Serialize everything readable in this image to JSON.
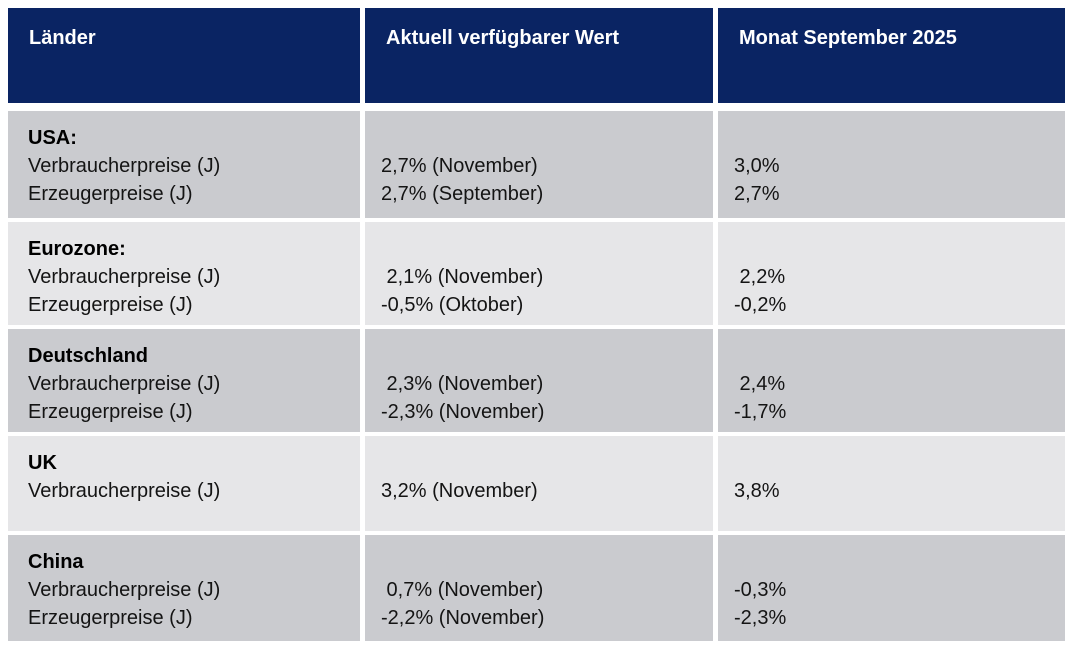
{
  "colors": {
    "header_bg": "#0a2463",
    "header_text": "#ffffff",
    "row_dark": "#cacbcf",
    "row_light": "#e6e6e8",
    "body_text": "#141414"
  },
  "chart_data": {
    "type": "table",
    "columns": [
      "Länder",
      "Aktuell verfügbarer Wert",
      "Monat September 2025"
    ],
    "rows": [
      {
        "country": "USA:",
        "labels": [
          "Verbraucherpreise (J)",
          "Erzeugerpreise (J)"
        ],
        "current": [
          "2,7% (November)",
          "2,7% (September)"
        ],
        "september": [
          "3,0%",
          "2,7%"
        ]
      },
      {
        "country": "Eurozone:",
        "labels": [
          "Verbraucherpreise (J)",
          "Erzeugerpreise (J)"
        ],
        "current": [
          " 2,1% (November)",
          "-0,5% (Oktober)"
        ],
        "september": [
          " 2,2%",
          "-0,2%"
        ]
      },
      {
        "country": "Deutschland",
        "labels": [
          "Verbraucherpreise (J)",
          "Erzeugerpreise (J)"
        ],
        "current": [
          " 2,3% (November)",
          "-2,3% (November)"
        ],
        "september": [
          " 2,4%",
          "-1,7%"
        ]
      },
      {
        "country": "UK",
        "labels": [
          "Verbraucherpreise (J)"
        ],
        "current": [
          "3,2% (November)"
        ],
        "september": [
          "3,8%"
        ]
      },
      {
        "country": "China",
        "labels": [
          "Verbraucherpreise (J)",
          "Erzeugerpreise (J)"
        ],
        "current": [
          " 0,7% (November)",
          "-2,2% (November)"
        ],
        "september": [
          "-0,3%",
          "-2,3%"
        ]
      }
    ]
  }
}
